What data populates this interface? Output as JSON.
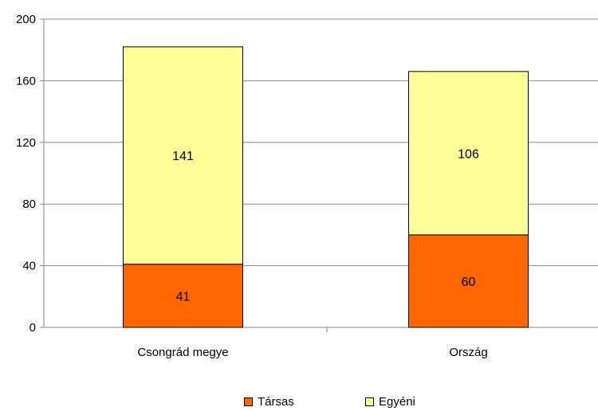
{
  "chart_data": {
    "type": "bar",
    "stacked": true,
    "categories": [
      "Csongrád megye",
      "Ország"
    ],
    "series": [
      {
        "name": "Társas",
        "values": [
          41,
          60
        ],
        "color": "#ff6600"
      },
      {
        "name": "Egyéni",
        "values": [
          141,
          106
        ],
        "color": "#ffff99"
      }
    ],
    "ylim": [
      0,
      200
    ],
    "yticks": [
      0,
      40,
      80,
      120,
      160,
      200
    ],
    "grid": true,
    "legend": "bottom"
  }
}
